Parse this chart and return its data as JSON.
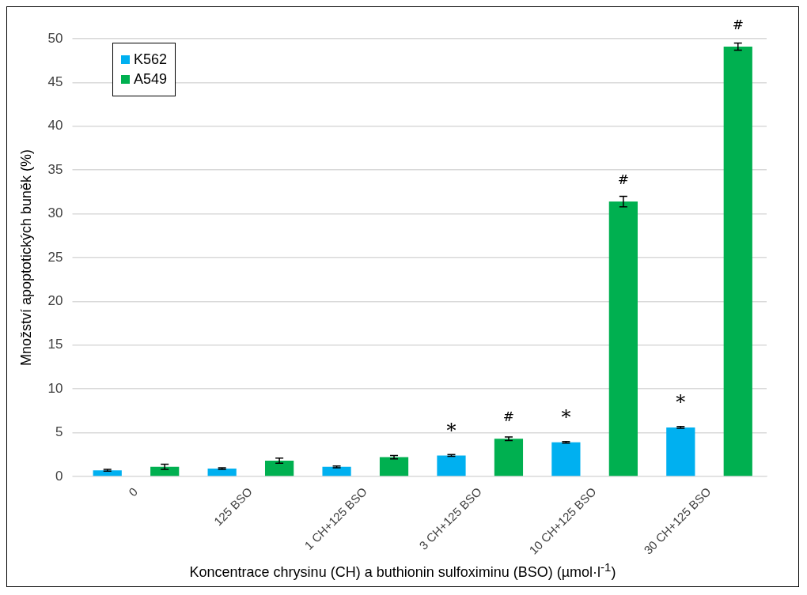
{
  "chart_data": {
    "type": "bar",
    "xlabel": "Koncentrace chrysinu (CH) a buthionin sulfoximinu (BSO) (µmol·l$^{-1}$)",
    "ylabel": "Množství apoptotických buněk (%)",
    "categories": [
      "0",
      "125 BSO",
      "1 CH+125 BSO",
      "3 CH+125 BSO",
      "10 CH+125 BSO",
      "30 CH+125 BSO"
    ],
    "series": [
      {
        "name": "K562",
        "color": "#00b0f0",
        "values": [
          0.7,
          0.9,
          1.1,
          2.4,
          3.9,
          5.6
        ],
        "errors": [
          0.1,
          0.1,
          0.1,
          0.1,
          0.1,
          0.1
        ],
        "value_labels": [
          null,
          null,
          null,
          "*",
          "*",
          "*"
        ]
      },
      {
        "name": "A549",
        "color": "#00b050",
        "values": [
          1.1,
          1.8,
          2.2,
          4.3,
          31.4,
          49.1
        ],
        "errors": [
          0.3,
          0.3,
          0.2,
          0.2,
          0.6,
          0.4
        ],
        "value_labels": [
          null,
          null,
          null,
          "#",
          "#",
          "#"
        ]
      }
    ],
    "ylim": [
      0,
      50
    ],
    "yticks": [
      0,
      5,
      10,
      15,
      20,
      25,
      30,
      35,
      40,
      45,
      50
    ],
    "grid": "y",
    "legend": "top left"
  }
}
